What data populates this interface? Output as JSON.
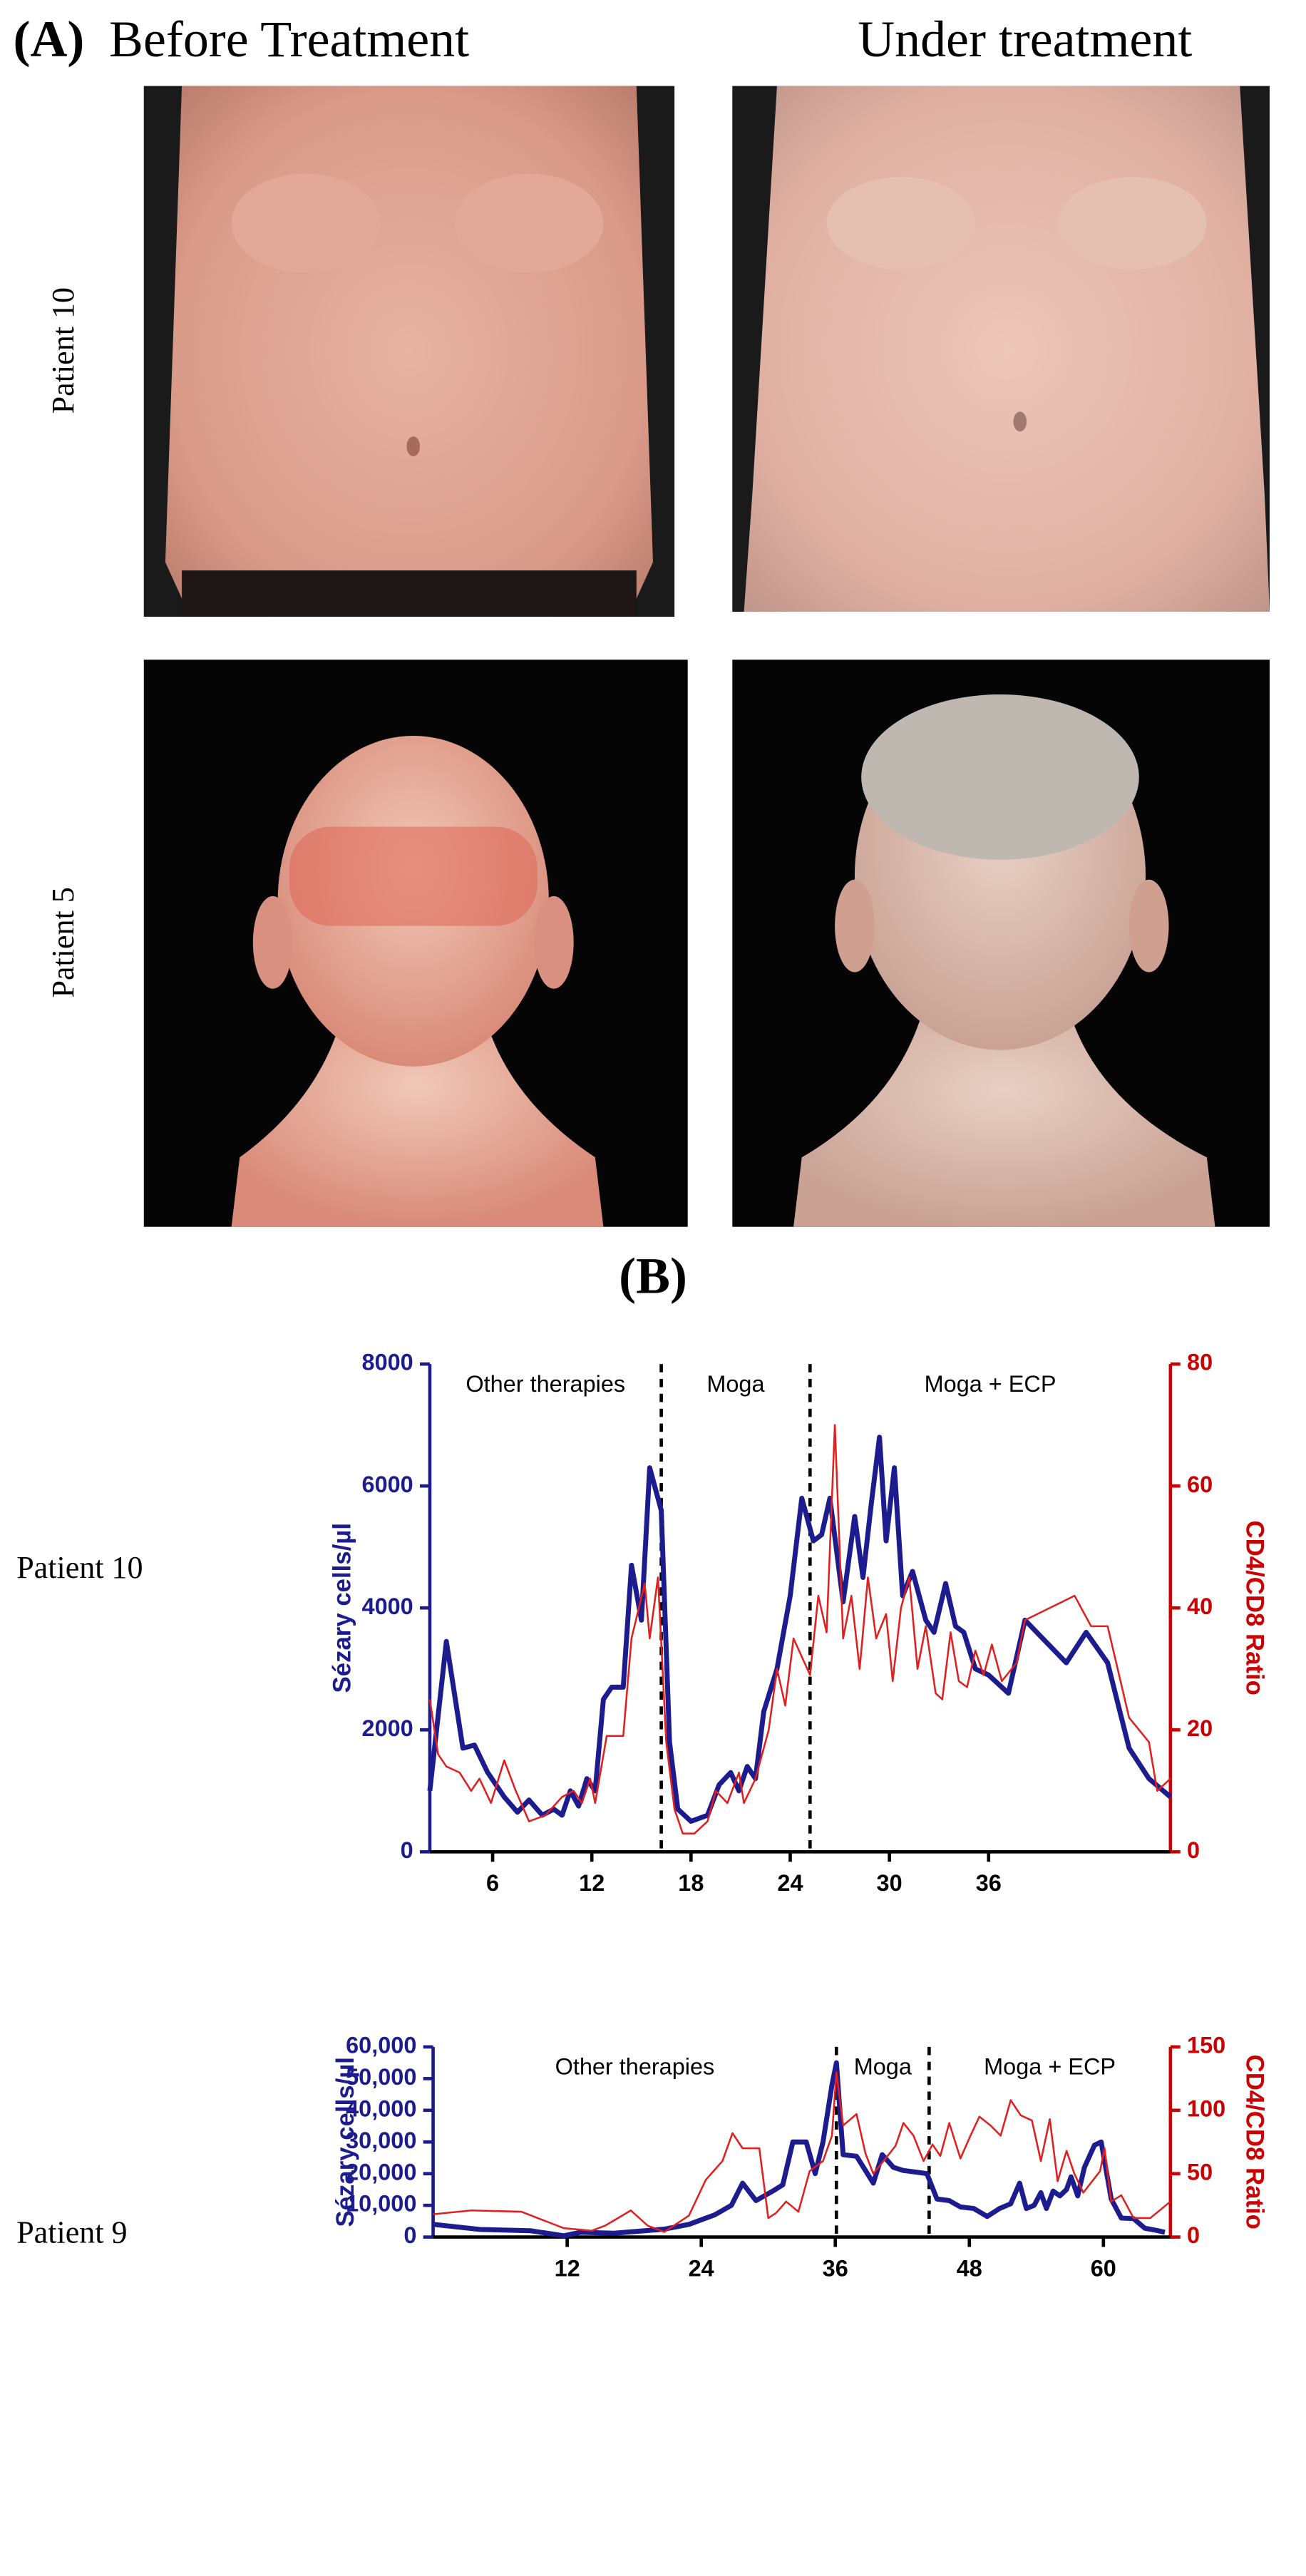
{
  "panel_a": {
    "label": "(A)",
    "columns": [
      "Before Treatment",
      "Under treatment"
    ],
    "rows": [
      "Patient 10",
      "Patient 5"
    ]
  },
  "panel_b": {
    "label": "(B)"
  },
  "chart_data": [
    {
      "type": "line",
      "label": "Patient 10",
      "y_label": "Sézary cells/µl",
      "y2_label": "CD4/CD8 Ratio",
      "xlim": [
        2.2,
        47
      ],
      "xticks": [
        6,
        12,
        18,
        24,
        30,
        36
      ],
      "ylim": [
        0,
        8000
      ],
      "yticks": [
        0,
        2000,
        4000,
        6000,
        8000
      ],
      "y2lim": [
        0,
        80
      ],
      "y2ticks": [
        0,
        20,
        40,
        60,
        80
      ],
      "y_color": "#1c1c8e",
      "y2_color": "#cc0000",
      "vlines": [
        16.2,
        25.2
      ],
      "annotations": [
        "Other therapies",
        "Moga",
        "Moga + ECP"
      ],
      "series": [
        {
          "name": "Sézary cells/µl",
          "color": "#1c1c8e",
          "axis": "y",
          "x": [
            2.2,
            3.2,
            4.2,
            4.9,
            5.7,
            6.7,
            7.5,
            8.2,
            9,
            9.7,
            10.2,
            10.7,
            11.2,
            11.7,
            12.2,
            12.7,
            13.2,
            13.9,
            14.4,
            15,
            15.5,
            16.2,
            16.7,
            17.2,
            18,
            19,
            19.7,
            20.4,
            20.9,
            21.4,
            21.9,
            22.4,
            23.2,
            24,
            24.7,
            25.4,
            25.9,
            26.4,
            27.2,
            27.9,
            28.4,
            28.9,
            29.4,
            29.8,
            30.3,
            30.8,
            31.4,
            32.2,
            32.7,
            33.4,
            34,
            34.5,
            35.2,
            36,
            37.2,
            38.2,
            40.7,
            41.9,
            43.2,
            44.5,
            45.7,
            47
          ],
          "values": [
            1000,
            3450,
            1700,
            1750,
            1300,
            900,
            650,
            850,
            600,
            700,
            600,
            1000,
            750,
            1200,
            1000,
            2500,
            2700,
            2700,
            4700,
            3800,
            6300,
            5600,
            1800,
            700,
            500,
            600,
            1100,
            1300,
            1000,
            1400,
            1200,
            2300,
            3000,
            4200,
            5800,
            5100,
            5200,
            5800,
            4100,
            5500,
            4500,
            5700,
            6800,
            5100,
            6300,
            4200,
            4600,
            3800,
            3600,
            4400,
            3700,
            3600,
            3000,
            2900,
            2600,
            3800,
            3100,
            3600,
            3100,
            1700,
            1200,
            900
          ]
        },
        {
          "name": "CD4/CD8 Ratio",
          "color": "#e02020",
          "axis": "y2",
          "x": [
            2.2,
            2.7,
            3.2,
            4,
            4.7,
            5.2,
            5.9,
            6.7,
            7.4,
            8.2,
            9.2,
            10.2,
            10.9,
            11.4,
            11.9,
            12.2,
            12.9,
            13.4,
            13.9,
            14.4,
            15.2,
            15.5,
            16,
            16.5,
            17,
            17.5,
            18.2,
            19,
            19.5,
            20.2,
            20.9,
            21.2,
            21.9,
            22.7,
            23.2,
            23.7,
            24.2,
            24.7,
            25.2,
            25.7,
            26.2,
            26.7,
            27.2,
            27.7,
            28.2,
            28.7,
            29.2,
            29.8,
            30.2,
            30.7,
            31.2,
            31.7,
            32.2,
            32.8,
            33.2,
            33.7,
            34.2,
            34.7,
            35.2,
            35.7,
            36.2,
            36.8,
            37.7,
            38.2,
            41.2,
            42.2,
            43.2,
            44.5,
            45.7,
            46.2,
            47
          ],
          "values": [
            25,
            16,
            14,
            13,
            10,
            12,
            8,
            15,
            10,
            5,
            6,
            9,
            10,
            8,
            12,
            8,
            19,
            19,
            19,
            35,
            44,
            35,
            45,
            18,
            7,
            3,
            3,
            5,
            10,
            8,
            13,
            8,
            12,
            20,
            30,
            24,
            35,
            32,
            29,
            42,
            36,
            70,
            35,
            42,
            30,
            45,
            35,
            39,
            28,
            40,
            45,
            30,
            37,
            26,
            25,
            36,
            28,
            27,
            33,
            29,
            34,
            28,
            31,
            38,
            42,
            37,
            37,
            22,
            18,
            10,
            12
          ]
        }
      ]
    },
    {
      "type": "line",
      "label": "Patient 9",
      "y_label": "Sézary cells/µl",
      "y2_label": "CD4/CD8 Ratio",
      "xlim": [
        0,
        66
      ],
      "xticks": [
        12,
        24,
        36,
        48,
        60
      ],
      "ylim": [
        0,
        60000
      ],
      "yticks": [
        0,
        {
          "value": 10000,
          "label": "10,000"
        },
        {
          "value": 20000,
          "label": "20,000"
        },
        {
          "value": 30000,
          "label": "30,000"
        },
        {
          "value": 40000,
          "label": "40,000"
        },
        {
          "value": 50000,
          "label": "50,000"
        },
        {
          "value": 60000,
          "label": "60,000"
        }
      ],
      "y2lim": [
        0,
        150
      ],
      "y2ticks": [
        0,
        50,
        100,
        150
      ],
      "y_color": "#1c1c8e",
      "y2_color": "#cc0000",
      "vlines": [
        36.1,
        44.4
      ],
      "annotations": [
        "Other therapies",
        "Moga",
        "Moga + ECP"
      ],
      "series": [
        {
          "name": "Sézary cells/µl",
          "color": "#1c1c8e",
          "axis": "y",
          "x": [
            0,
            4.2,
            8.7,
            11.7,
            13.2,
            16.2,
            20.7,
            22.9,
            25.2,
            26.7,
            27.7,
            28.9,
            30.4,
            31.3,
            32.2,
            33.4,
            34.2,
            34.9,
            35.7,
            36.1,
            36.7,
            37.9,
            38.7,
            39.4,
            40.2,
            41.2,
            42.1,
            43.2,
            44.2,
            45.1,
            46.2,
            47.2,
            48.4,
            49.6,
            50.7,
            51.7,
            52.5,
            53.1,
            53.8,
            54.4,
            54.9,
            55.5,
            56.1,
            56.7,
            57.1,
            57.7,
            58.3,
            59.2,
            59.8,
            60.7,
            61.6,
            62.7,
            63.7,
            64.9,
            65.5
          ],
          "values": [
            4000,
            2400,
            2000,
            400,
            1500,
            1200,
            2500,
            4000,
            7000,
            10000,
            17000,
            11500,
            14500,
            16500,
            30000,
            30000,
            20000,
            30000,
            48000,
            55000,
            26000,
            25500,
            21000,
            17000,
            26000,
            22000,
            21000,
            20500,
            20000,
            12000,
            11500,
            9500,
            9000,
            6500,
            9000,
            10500,
            17000,
            9000,
            10000,
            14000,
            9000,
            14500,
            13000,
            15000,
            19000,
            13000,
            22000,
            29000,
            30000,
            12000,
            6000,
            5800,
            2800,
            2000,
            1500
          ]
        },
        {
          "name": "CD4/CD8 Ratio",
          "color": "#e02020",
          "axis": "y2",
          "x": [
            0,
            3.4,
            7.9,
            11.7,
            14.2,
            15.4,
            17.7,
            19.2,
            20.7,
            22.9,
            24.4,
            25.9,
            26.8,
            27.7,
            29.2,
            30,
            30.7,
            31.6,
            32.7,
            33.7,
            34.9,
            35.7,
            36.1,
            36.7,
            37.9,
            38.7,
            39.4,
            40.5,
            41.4,
            42.1,
            43,
            43.9,
            44.7,
            45.4,
            46.2,
            47.2,
            48.1,
            48.9,
            49.9,
            50.8,
            51.7,
            52.6,
            53.6,
            54.4,
            55.2,
            55.9,
            56.7,
            57.4,
            58.2,
            59.7,
            60.1,
            60.7,
            61.6,
            62.7,
            64.2,
            66
          ],
          "values": [
            18,
            21,
            20,
            7,
            5,
            9,
            21,
            9,
            4,
            17,
            45,
            60,
            82,
            70,
            70,
            15,
            19,
            28,
            20,
            52,
            60,
            80,
            130,
            88,
            97,
            66,
            50,
            62,
            72,
            90,
            80,
            60,
            73,
            64,
            90,
            62,
            80,
            95,
            88,
            80,
            108,
            96,
            92,
            60,
            93,
            44,
            68,
            50,
            35,
            52,
            70,
            28,
            33,
            15,
            15,
            28
          ]
        }
      ]
    }
  ]
}
